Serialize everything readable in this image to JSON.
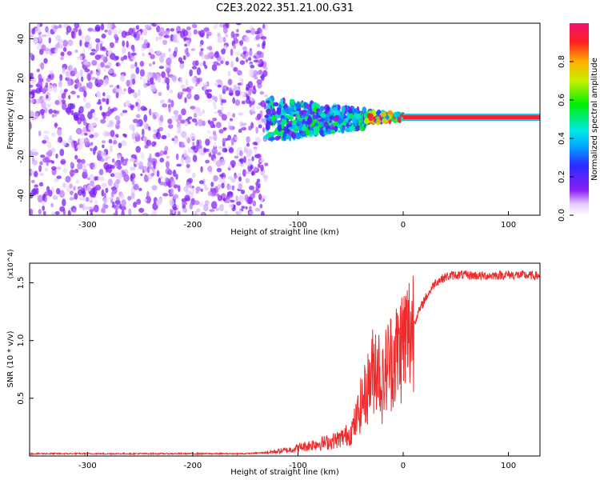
{
  "title": "C2E3.2022.351.21.00.G31",
  "colors": {
    "snr_line": "#ee2a2a",
    "spectrogram_low": "#d8c6f5",
    "spectrogram_mid": "#7a1ff0",
    "spectrogram_peak_band": "#ff2020"
  },
  "chart_data": [
    {
      "type": "heatmap",
      "title": "C2E3.2022.351.21.00.G31",
      "xlabel": "Height of straight line (km)",
      "ylabel": "Frequency (Hz)",
      "xlim": [
        -355,
        130
      ],
      "ylim": [
        -50,
        48
      ],
      "xticks": [
        -300,
        -200,
        -100,
        0,
        100
      ],
      "yticks": [
        -40,
        -20,
        0,
        20,
        40
      ],
      "grid": false,
      "colorbar": {
        "label": "Normalized spectral amplitude",
        "range": [
          0.0,
          1.0
        ],
        "ticks": [
          0.0,
          0.2,
          0.4,
          0.6,
          0.8
        ],
        "colormap": "rainbow (white-purple-blue-cyan-green-yellow-red-magenta)"
      },
      "features": [
        {
          "x_range": [
            -355,
            -130
          ],
          "frequency_range": [
            -50,
            48
          ],
          "amplitude": 0.1,
          "description": "broadband scattered noise"
        },
        {
          "x_range": [
            -130,
            -35
          ],
          "frequency_range": [
            -12,
            10
          ],
          "amplitude": 0.35,
          "description": "converging clustered energy"
        },
        {
          "x_range": [
            -35,
            0
          ],
          "frequency_range": [
            -3,
            3
          ],
          "amplitude": 0.6,
          "description": "narrowing band"
        },
        {
          "x_range": [
            0,
            130
          ],
          "frequency_range": [
            -1,
            1
          ],
          "amplitude": 1.0,
          "description": "steady carrier line at 0 Hz"
        }
      ]
    },
    {
      "type": "line",
      "xlabel": "Height of straight line (km)",
      "ylabel": "SNR (10 * v/v)",
      "y_multiplier": "(x10^4)",
      "xlim": [
        -355,
        130
      ],
      "ylim": [
        0,
        1.67
      ],
      "xticks": [
        -300,
        -200,
        -100,
        0,
        100
      ],
      "yticks": [
        0.5,
        1.0,
        1.5
      ],
      "ytick_labels": [
        "0.5",
        "1.0",
        "1.5"
      ],
      "grid": false,
      "series": [
        {
          "x": [
            -355,
            -300,
            -250,
            -200,
            -150,
            -130,
            -110,
            -100,
            -90,
            -80,
            -70,
            -60,
            -50,
            -45,
            -40,
            -35,
            -30,
            -25,
            -20,
            -15,
            -10,
            -5,
            0,
            5,
            10,
            15,
            20,
            25,
            30,
            40,
            50,
            75,
            100,
            130
          ],
          "y": [
            0.02,
            0.02,
            0.02,
            0.02,
            0.02,
            0.03,
            0.05,
            0.07,
            0.09,
            0.11,
            0.12,
            0.15,
            0.2,
            0.3,
            0.45,
            0.55,
            0.7,
            0.85,
            0.6,
            0.8,
            0.85,
            0.9,
            1.0,
            1.05,
            1.15,
            1.25,
            1.35,
            1.42,
            1.5,
            1.55,
            1.57,
            1.56,
            1.57,
            1.56
          ]
        }
      ]
    }
  ]
}
